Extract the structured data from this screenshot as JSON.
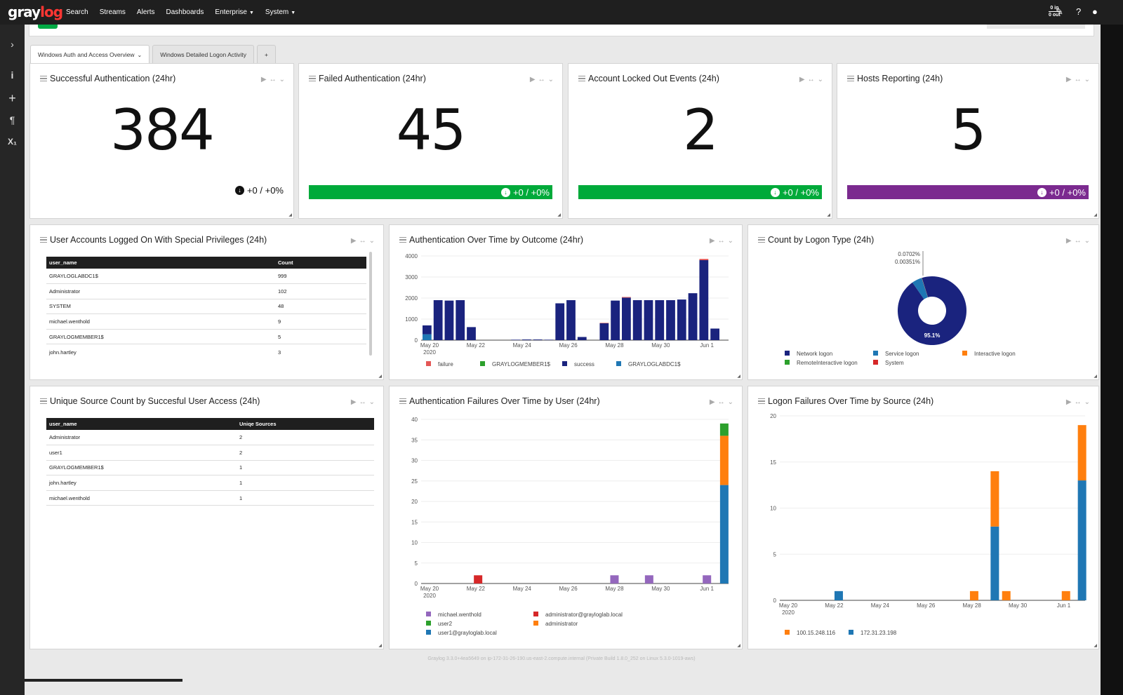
{
  "nav": {
    "logo_gray": "gray",
    "logo_log": "log",
    "links": [
      {
        "label": "Search"
      },
      {
        "label": "Streams"
      },
      {
        "label": "Alerts"
      },
      {
        "label": "Dashboards"
      },
      {
        "label": "Enterprise",
        "dropdown": true
      },
      {
        "label": "System",
        "dropdown": true
      }
    ],
    "throughput_in": "0 in",
    "throughput_out": "0 out"
  },
  "tabs": [
    {
      "label": "Windows Auth and Access Overview",
      "active": true
    },
    {
      "label": "Windows Detailed Logon Activity"
    },
    {
      "label": "+"
    }
  ],
  "widgets": {
    "successful_auth": {
      "title": "Successful Authentication (24hr)",
      "value": "384",
      "trend": "+0 / +0%"
    },
    "failed_auth": {
      "title": "Failed Authentication (24hr)",
      "value": "45",
      "trend": "+0 / +0%",
      "color": "#00aa3a"
    },
    "locked_out": {
      "title": "Account Locked Out Events (24h)",
      "value": "2",
      "trend": "+0 / +0%",
      "color": "#00aa3a"
    },
    "hosts": {
      "title": "Hosts Reporting (24h)",
      "value": "5",
      "trend": "+0 / +0%",
      "color": "#7b2a8f"
    },
    "special_privs": {
      "title": "User Accounts Logged On With Special Privileges (24h)",
      "columns": [
        "user_name",
        "Count"
      ],
      "rows": [
        [
          "GRAYLOGLABDC1$",
          "999"
        ],
        [
          "Administrator",
          "102"
        ],
        [
          "SYSTEM",
          "48"
        ],
        [
          "michael.wenthold",
          "9"
        ],
        [
          "GRAYLOGMEMBER1$",
          "5"
        ],
        [
          "john.hartley",
          "3"
        ]
      ]
    },
    "auth_over_time": {
      "title": "Authentication Over Time by Outcome (24hr)"
    },
    "logon_type": {
      "title": "Count by Logon Type (24h)"
    },
    "unique_source": {
      "title": "Unique Source Count by Succesful User Access (24h)",
      "columns": [
        "user_name",
        "Uniqe Sources"
      ],
      "rows": [
        [
          "Administrator",
          "2"
        ],
        [
          "user1",
          "2"
        ],
        [
          "GRAYLOGMEMBER1$",
          "1"
        ],
        [
          "john.hartley",
          "1"
        ],
        [
          "michael.wenthold",
          "1"
        ]
      ]
    },
    "auth_failures_user": {
      "title": "Authentication Failures Over Time by User (24hr)"
    },
    "logon_failures_source": {
      "title": "Logon Failures Over Time by Source (24h)"
    }
  },
  "chart_data": [
    {
      "type": "bar",
      "name": "auth_over_time",
      "x_ticks": [
        "May 20\n2020",
        "May 22",
        "May 24",
        "May 26",
        "May 28",
        "May 30",
        "Jun 1"
      ],
      "ylim": [
        0,
        4000
      ],
      "y_ticks": [
        0,
        1000,
        2000,
        3000,
        4000
      ],
      "series_colors": {
        "failure": "#e45756",
        "GRAYLOGMEMBER1$": "#2ca02c",
        "success": "#1a237e",
        "GRAYLOGLABDC1$": "#1f77b4"
      },
      "legend": [
        "failure",
        "GRAYLOGMEMBER1$",
        "success",
        "GRAYLOGLABDC1$"
      ],
      "success": [
        420,
        1900,
        1880,
        1900,
        620,
        0,
        0,
        0,
        20,
        30,
        30,
        20,
        1750,
        1900,
        150,
        0,
        800,
        1880,
        2020,
        1900,
        1900,
        1900,
        1900,
        1930,
        2230,
        3800,
        550
      ],
      "GRAYLOGLABDC1$": [
        280,
        0,
        0,
        0,
        0,
        0,
        0,
        0,
        0,
        0,
        0,
        0,
        0,
        0,
        0,
        0,
        0,
        0,
        0,
        0,
        0,
        0,
        0,
        0,
        0,
        0,
        0
      ],
      "failure": [
        0,
        0,
        0,
        0,
        0,
        0,
        0,
        0,
        0,
        0,
        0,
        0,
        0,
        0,
        0,
        0,
        20,
        0,
        30,
        0,
        0,
        0,
        0,
        0,
        0,
        60,
        0
      ]
    },
    {
      "type": "pie",
      "name": "logon_type",
      "slices": [
        {
          "label": "Network logon",
          "value": 95.1,
          "color": "#1a237e"
        },
        {
          "label": "Service logon",
          "value": 4.8,
          "color": "#1f77b4"
        },
        {
          "label": "Interactive logon",
          "value": 0.0702,
          "color": "#ff7f0e"
        },
        {
          "label": "RemoteInteractive logon",
          "value": 0.00351,
          "color": "#2ca02c"
        },
        {
          "label": "System",
          "value": 0.02,
          "color": "#d62728"
        }
      ],
      "annotations": [
        "0.0702%",
        "0.00351%",
        "95.1%"
      ]
    },
    {
      "type": "bar",
      "name": "auth_failures_user",
      "stacked": true,
      "x_ticks": [
        "May 20\n2020",
        "May 22",
        "May 24",
        "May 26",
        "May 28",
        "May 30",
        "Jun 1"
      ],
      "ylim": [
        0,
        40
      ],
      "y_ticks": [
        0,
        5,
        10,
        15,
        20,
        25,
        30,
        35,
        40
      ],
      "legend": [
        "michael.wenthold",
        "administrator@grayloglab.local",
        "user2",
        "administrator",
        "user1@grayloglab.local"
      ],
      "colors": {
        "michael.wenthold": "#9467bd",
        "administrator@grayloglab.local": "#d62728",
        "user2": "#2ca02c",
        "administrator": "#ff7f0e",
        "user1@grayloglab.local": "#1f77b4"
      },
      "bars": [
        {
          "x": 2.1,
          "stack": [
            {
              "s": "administrator@grayloglab.local",
              "v": 2
            }
          ]
        },
        {
          "x": 8.0,
          "stack": [
            {
              "s": "michael.wenthold",
              "v": 2
            }
          ]
        },
        {
          "x": 9.5,
          "stack": [
            {
              "s": "michael.wenthold",
              "v": 2
            }
          ]
        },
        {
          "x": 12.0,
          "stack": [
            {
              "s": "michael.wenthold",
              "v": 2
            }
          ]
        },
        {
          "x": 12.75,
          "stack": [
            {
              "s": "user1@grayloglab.local",
              "v": 24
            },
            {
              "s": "administrator",
              "v": 12
            },
            {
              "s": "user2",
              "v": 3
            }
          ]
        }
      ]
    },
    {
      "type": "bar",
      "name": "logon_failures_source",
      "stacked": true,
      "x_ticks": [
        "May 20\n2020",
        "May 22",
        "May 24",
        "May 26",
        "May 28",
        "May 30",
        "Jun 1"
      ],
      "ylim": [
        0,
        20
      ],
      "y_ticks": [
        0,
        5,
        10,
        15,
        20
      ],
      "legend": [
        "100.15.248.116",
        "172.31.23.198"
      ],
      "colors": {
        "100.15.248.116": "#ff7f0e",
        "172.31.23.198": "#1f77b4"
      },
      "bars": [
        {
          "x": 2.2,
          "stack": [
            {
              "s": "172.31.23.198",
              "v": 1
            }
          ]
        },
        {
          "x": 8.1,
          "stack": [
            {
              "s": "100.15.248.116",
              "v": 1
            }
          ]
        },
        {
          "x": 9.0,
          "stack": [
            {
              "s": "172.31.23.198",
              "v": 8
            },
            {
              "s": "100.15.248.116",
              "v": 6
            }
          ]
        },
        {
          "x": 9.5,
          "stack": [
            {
              "s": "100.15.248.116",
              "v": 1
            }
          ]
        },
        {
          "x": 12.1,
          "stack": [
            {
              "s": "100.15.248.116",
              "v": 1
            }
          ]
        },
        {
          "x": 12.8,
          "stack": [
            {
              "s": "172.31.23.198",
              "v": 13
            },
            {
              "s": "100.15.248.116",
              "v": 6
            }
          ]
        }
      ]
    }
  ],
  "footer": "Graylog 3.3.0+4ea5649 on ip-172-31-26-190.us-east-2.compute.internal (Private Build 1.8.0_252 on Linux 5.3.0-1019-aws)"
}
